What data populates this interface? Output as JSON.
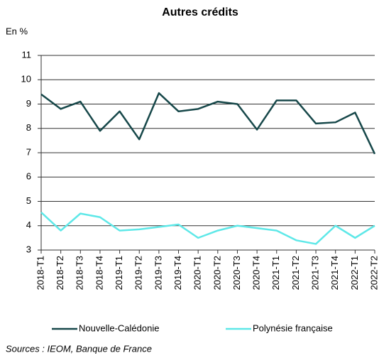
{
  "chart_data": {
    "type": "line",
    "title": "Autres crédits",
    "y_label": "En %",
    "source": "Sources : IEOM, Banque de France",
    "categories": [
      "2018-T1",
      "2018-T2",
      "2018-T3",
      "2018-T4",
      "2019-T1",
      "2019-T2",
      "2019-T3",
      "2019-T4",
      "2020-T1",
      "2020-T2",
      "2020-T3",
      "2020-T4",
      "2021-T1",
      "2021-T2",
      "2021-T3",
      "2021-T4",
      "2022-T1",
      "2022-T2"
    ],
    "series": [
      {
        "name": "Nouvelle-Calédonie",
        "color": "#17484a",
        "values": [
          9.4,
          8.8,
          9.1,
          7.9,
          8.7,
          7.55,
          9.45,
          8.7,
          8.8,
          9.1,
          9.0,
          7.95,
          9.15,
          9.15,
          8.2,
          8.25,
          8.65,
          6.95
        ]
      },
      {
        "name": "Polynésie française",
        "color": "#5ee8e8",
        "values": [
          4.55,
          3.8,
          4.5,
          4.35,
          3.8,
          3.85,
          3.95,
          4.05,
          3.5,
          3.8,
          4.0,
          3.9,
          3.8,
          3.4,
          3.25,
          4.0,
          3.5,
          4.0
        ]
      }
    ],
    "ylim": [
      3,
      11
    ],
    "yticks": [
      3,
      4,
      5,
      6,
      7,
      8,
      9,
      10,
      11
    ],
    "grid": true,
    "legend": "bottom"
  }
}
